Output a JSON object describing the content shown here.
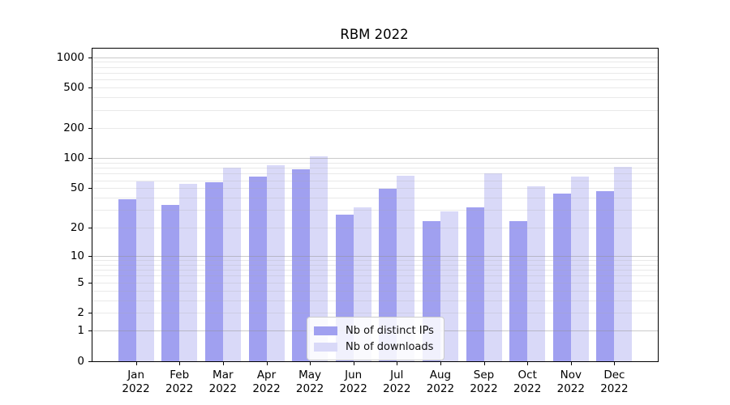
{
  "chart_data": {
    "type": "bar",
    "title": "RBM 2022",
    "categories": [
      "Jan",
      "Feb",
      "Mar",
      "Apr",
      "May",
      "Jun",
      "Jul",
      "Aug",
      "Sep",
      "Oct",
      "Nov",
      "Dec"
    ],
    "year": "2022",
    "series": [
      {
        "name": "Nb of distinct IPs",
        "color": "#a0a0f0",
        "values": [
          39,
          34,
          57,
          65,
          77,
          27,
          49,
          23,
          32,
          23,
          44,
          47
        ]
      },
      {
        "name": "Nb of downloads",
        "color": "#d9d9f8",
        "values": [
          59,
          55,
          80,
          85,
          104,
          32,
          67,
          29,
          70,
          52,
          66,
          82
        ]
      }
    ],
    "yscale": "log10(value+1)",
    "yticks": [
      0,
      1,
      2,
      5,
      10,
      20,
      50,
      100,
      200,
      500,
      1000
    ],
    "ytick_major": [
      1,
      10,
      100,
      1000
    ],
    "ylim": [
      0,
      1240
    ],
    "grid": "both",
    "legend_position": "lower center"
  }
}
